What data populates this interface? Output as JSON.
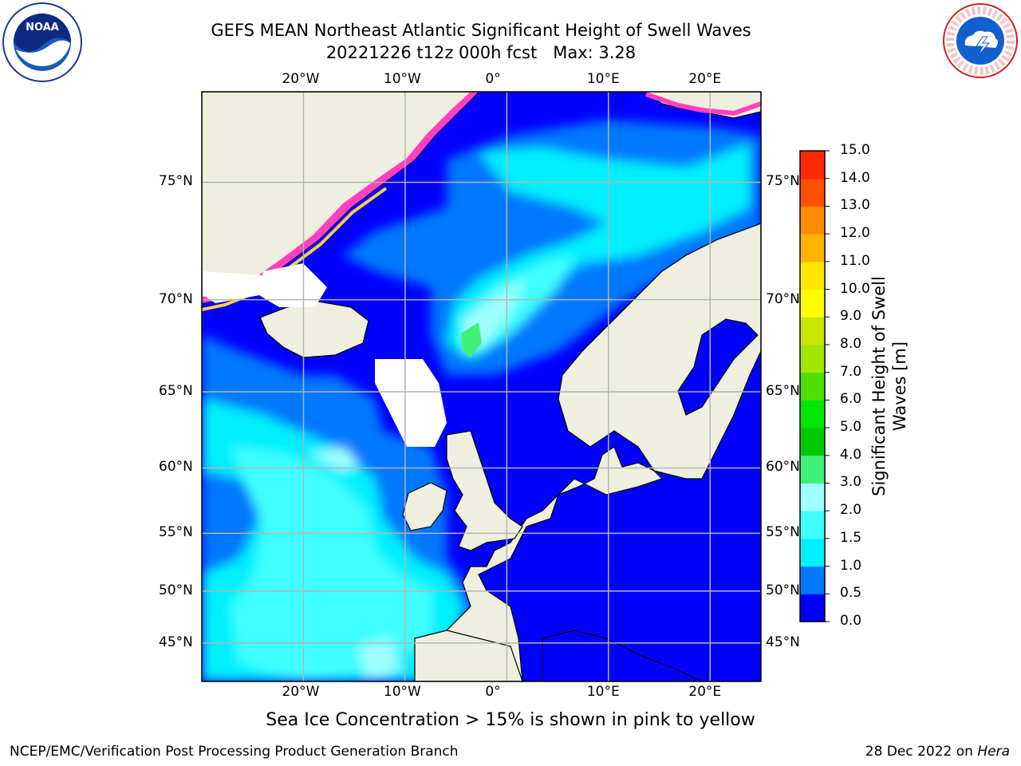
{
  "title": {
    "line1": "GEFS MEAN Northeast Atlantic Significant Height of Swell Waves",
    "line2": "20221226 t12z 000h fcst   Max: 3.28"
  },
  "map": {
    "lon_range": [
      -30,
      25
    ],
    "lat_range": [
      41,
      78
    ],
    "lon_ticks": [
      {
        "v": -20,
        "label": "20°W"
      },
      {
        "v": -10,
        "label": "10°W"
      },
      {
        "v": 0,
        "label": "0°"
      },
      {
        "v": 10,
        "label": "10°E"
      },
      {
        "v": 20,
        "label": "20°E"
      }
    ],
    "lat_ticks": [
      {
        "v": 75,
        "label": "75°N"
      },
      {
        "v": 70,
        "label": "70°N"
      },
      {
        "v": 65,
        "label": "65°N"
      },
      {
        "v": 60,
        "label": "60°N"
      },
      {
        "v": 55,
        "label": "55°N"
      },
      {
        "v": 50,
        "label": "50°N"
      },
      {
        "v": 45,
        "label": "45°N"
      }
    ],
    "land_color": "#efefdf",
    "ocean_base_color": "#0000ff",
    "grid_color": "#b4b4b4"
  },
  "colorbar": {
    "title": "Significant Height of Swell Waves [m]",
    "levels": [
      "0.0",
      "0.5",
      "1.0",
      "1.5",
      "2.0",
      "3.0",
      "4.0",
      "5.0",
      "6.0",
      "7.0",
      "8.0",
      "9.0",
      "10.0",
      "11.0",
      "12.0",
      "13.0",
      "14.0",
      "15.0"
    ],
    "colors": [
      "#0000f8",
      "#0078ff",
      "#00f0ff",
      "#40ffff",
      "#a0ffff",
      "#40f078",
      "#00c800",
      "#00e600",
      "#50e000",
      "#a0e600",
      "#c8e600",
      "#ffff00",
      "#ffe600",
      "#ffb400",
      "#ff8c00",
      "#ff5000",
      "#ff2800",
      "#ff0000"
    ]
  },
  "sea_ice_note": "Sea Ice Concentration > 15% is shown in pink to yellow",
  "footer": {
    "left": "NCEP/EMC/Verification Post Processing Product Generation Branch",
    "right_date": "28 Dec 2022 on",
    "right_machine": "Hera"
  },
  "logos": {
    "noaa_text": "NOAA",
    "nws_text": "NATIONAL WEATHER SERVICE"
  }
}
